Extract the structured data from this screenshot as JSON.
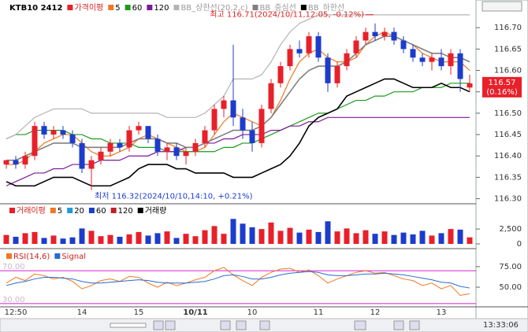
{
  "chart_data": [
    {
      "type": "candlestick",
      "title": "KTB10 2412",
      "legend_prefix": "가격이평",
      "categories": [
        null,
        "12:50",
        null,
        null,
        null,
        null,
        null,
        null,
        "14",
        null,
        null,
        null,
        null,
        null,
        "15",
        null,
        null,
        null,
        null,
        null,
        "10/11",
        null,
        null,
        null,
        null,
        null,
        "10",
        null,
        null,
        null,
        null,
        null,
        null,
        "11",
        null,
        null,
        null,
        null,
        null,
        "12",
        null,
        null,
        null,
        null,
        null,
        null,
        "13",
        null,
        null,
        null
      ],
      "open": [
        116.38,
        116.39,
        116.38,
        116.4,
        116.47,
        116.45,
        116.46,
        116.45,
        116.43,
        116.37,
        116.39,
        116.41,
        116.43,
        116.42,
        116.46,
        116.47,
        116.44,
        116.41,
        116.42,
        116.4,
        116.41,
        116.43,
        116.46,
        116.51,
        116.53,
        116.49,
        116.46,
        116.43,
        116.51,
        116.57,
        116.61,
        116.65,
        116.64,
        116.68,
        116.63,
        116.57,
        116.61,
        116.64,
        116.67,
        116.69,
        116.68,
        116.69,
        116.67,
        116.65,
        116.63,
        116.62,
        116.63,
        116.61,
        116.64,
        116.56
      ],
      "high": [
        116.39,
        116.4,
        116.41,
        116.48,
        116.48,
        116.47,
        116.47,
        116.46,
        116.44,
        116.4,
        116.42,
        116.44,
        116.44,
        116.47,
        116.48,
        116.47,
        116.45,
        116.43,
        116.43,
        116.42,
        116.44,
        116.47,
        116.52,
        116.54,
        116.66,
        116.51,
        116.48,
        116.52,
        116.58,
        116.62,
        116.66,
        116.67,
        116.69,
        116.69,
        116.64,
        116.62,
        116.65,
        116.68,
        116.7,
        116.71,
        116.7,
        116.7,
        116.68,
        116.66,
        116.64,
        116.64,
        116.65,
        116.65,
        116.65,
        116.59
      ],
      "low": [
        116.37,
        116.37,
        116.37,
        116.39,
        116.44,
        116.44,
        116.44,
        116.42,
        116.36,
        116.32,
        116.38,
        116.4,
        116.41,
        116.41,
        116.45,
        116.43,
        116.4,
        116.39,
        116.39,
        116.38,
        116.4,
        116.42,
        116.45,
        116.49,
        116.47,
        116.44,
        116.41,
        116.42,
        116.5,
        116.56,
        116.6,
        116.63,
        116.63,
        116.62,
        116.55,
        116.56,
        116.6,
        116.63,
        116.66,
        116.67,
        116.67,
        116.66,
        116.64,
        116.62,
        116.61,
        116.6,
        116.6,
        116.59,
        116.55,
        116.55
      ],
      "close": [
        116.39,
        116.38,
        116.4,
        116.47,
        116.45,
        116.46,
        116.45,
        116.43,
        116.37,
        116.39,
        116.41,
        116.43,
        116.42,
        116.46,
        116.47,
        116.44,
        116.41,
        116.42,
        116.4,
        116.41,
        116.43,
        116.46,
        116.51,
        116.53,
        116.49,
        116.46,
        116.43,
        116.51,
        116.57,
        116.61,
        116.65,
        116.64,
        116.68,
        116.63,
        116.57,
        116.61,
        116.64,
        116.67,
        116.69,
        116.68,
        116.69,
        116.67,
        116.65,
        116.63,
        116.62,
        116.63,
        116.61,
        116.64,
        116.58,
        116.57
      ],
      "up_color": "#e8202a",
      "down_color": "#1c3ccc",
      "series": [
        {
          "name": "5",
          "color": "#f07820",
          "values": [
            116.38,
            116.38,
            116.39,
            116.41,
            116.43,
            116.44,
            116.45,
            116.45,
            116.43,
            116.41,
            116.4,
            116.4,
            116.41,
            116.42,
            116.44,
            116.45,
            116.44,
            116.43,
            116.42,
            116.41,
            116.41,
            116.42,
            116.45,
            116.48,
            116.5,
            116.49,
            116.48,
            116.47,
            116.49,
            116.53,
            116.58,
            116.62,
            116.64,
            116.65,
            116.63,
            116.62,
            116.62,
            116.63,
            116.66,
            116.68,
            116.69,
            116.68,
            116.67,
            116.66,
            116.64,
            116.63,
            116.62,
            116.62,
            116.62,
            116.6
          ]
        },
        {
          "name": "60",
          "color": "#1f9a1f",
          "values": [
            116.44,
            116.45,
            116.45,
            116.46,
            116.46,
            116.46,
            116.46,
            116.45,
            116.45,
            116.44,
            116.44,
            116.43,
            116.43,
            116.43,
            116.42,
            116.42,
            116.42,
            116.41,
            116.41,
            116.41,
            116.41,
            116.41,
            116.41,
            116.42,
            116.42,
            116.43,
            116.43,
            116.44,
            116.45,
            116.46,
            116.47,
            116.48,
            116.49,
            116.5,
            116.5,
            116.51,
            116.52,
            116.53,
            116.53,
            116.54,
            116.54,
            116.55,
            116.55,
            116.55,
            116.56,
            116.56,
            116.56,
            116.57,
            116.57,
            116.57
          ]
        },
        {
          "name": "120",
          "color": "#7a1a96",
          "values": [
            116.33,
            116.34,
            116.35,
            116.36,
            116.36,
            116.37,
            116.37,
            116.38,
            116.38,
            116.38,
            116.39,
            116.39,
            116.39,
            116.4,
            116.4,
            116.4,
            116.41,
            116.41,
            116.41,
            116.42,
            116.42,
            116.43,
            116.43,
            116.44,
            116.44,
            116.45,
            116.45,
            116.45,
            116.46,
            116.46,
            116.47,
            116.47,
            116.48,
            116.48,
            116.49,
            116.49,
            116.49,
            116.49,
            116.49,
            116.49,
            116.49,
            116.49,
            116.49,
            116.49,
            116.49,
            116.49,
            116.49,
            116.49,
            116.49,
            116.49
          ]
        },
        {
          "name": "BB_상한선(20,2,c)",
          "color": "#b4b4b4",
          "values": [
            116.44,
            116.45,
            116.47,
            116.49,
            116.5,
            116.51,
            116.51,
            116.51,
            116.51,
            116.5,
            116.5,
            116.5,
            116.5,
            116.5,
            116.5,
            116.5,
            116.5,
            116.49,
            116.49,
            116.49,
            116.49,
            116.5,
            116.52,
            116.54,
            116.58,
            116.58,
            116.58,
            116.59,
            116.62,
            116.66,
            116.69,
            116.71,
            116.72,
            116.73,
            116.73,
            116.73,
            116.73,
            116.73,
            116.73,
            116.73,
            116.73,
            116.73,
            116.73,
            116.73,
            116.73,
            116.73,
            116.73,
            116.73,
            116.73,
            116.73
          ]
        },
        {
          "name": "BB_중심선",
          "color": "#808080",
          "values": [
            116.39,
            116.39,
            116.4,
            116.41,
            116.42,
            116.43,
            116.43,
            116.43,
            116.42,
            116.42,
            116.42,
            116.42,
            116.42,
            116.43,
            116.44,
            116.44,
            116.44,
            116.43,
            116.43,
            116.42,
            116.42,
            116.43,
            116.44,
            116.45,
            116.46,
            116.46,
            116.46,
            116.47,
            116.49,
            116.52,
            116.55,
            116.58,
            116.6,
            116.61,
            116.61,
            116.61,
            116.62,
            116.64,
            116.66,
            116.67,
            116.68,
            116.68,
            116.67,
            116.66,
            116.65,
            116.64,
            116.64,
            116.63,
            116.63,
            116.62
          ]
        },
        {
          "name": "BB_하한선",
          "color": "#000000",
          "values": [
            116.34,
            116.33,
            116.33,
            116.33,
            116.34,
            116.35,
            116.35,
            116.35,
            116.34,
            116.33,
            116.33,
            116.33,
            116.34,
            116.35,
            116.37,
            116.38,
            116.38,
            116.38,
            116.37,
            116.37,
            116.36,
            116.36,
            116.36,
            116.36,
            116.35,
            116.35,
            116.35,
            116.36,
            116.37,
            116.38,
            116.4,
            116.43,
            116.47,
            116.49,
            116.5,
            116.51,
            116.54,
            116.55,
            116.56,
            116.57,
            116.58,
            116.58,
            116.57,
            116.56,
            116.56,
            116.56,
            116.57,
            116.56,
            116.56,
            116.55
          ]
        }
      ],
      "ylim": [
        116.29,
        116.75
      ],
      "yticks": [
        {
          "value": 116.7,
          "label": "116.70"
        },
        {
          "value": 116.65,
          "label": "116.65"
        },
        {
          "value": 116.6,
          "label": "116.60"
        },
        {
          "value": 116.55,
          "label": "116.55"
        },
        {
          "value": 116.5,
          "label": "116.50"
        },
        {
          "value": 116.45,
          "label": "116.45"
        },
        {
          "value": 116.4,
          "label": "116.40"
        },
        {
          "value": 116.35,
          "label": "116.35"
        },
        {
          "value": 116.3,
          "label": "116.30"
        }
      ],
      "high_annotation": "최고 116.71(2024/10/11,12:05, -0.12%)",
      "low_annotation": "최저 116.32(2024/10/10,14:10, +0.21%)",
      "last_price": 116.57,
      "last_change": "(0.16%)",
      "time": "13:33:06"
    },
    {
      "type": "volume",
      "legend_prefix": "거래이평",
      "legend": [
        {
          "text": "5",
          "color": "#f07820"
        },
        {
          "text": "20",
          "color": "#1f9adf"
        },
        {
          "text": "60",
          "color": "#1c3ccc"
        },
        {
          "text": "120",
          "color": "#c0202a"
        }
      ],
      "series": [
        {
          "name": "거래량",
          "color": "#000000",
          "values": [
            1500,
            1200,
            1800,
            2000,
            1000,
            1400,
            900,
            1100,
            2600,
            2200,
            1300,
            1500,
            1200,
            1600,
            2000,
            1400,
            1800,
            2100,
            1000,
            1700,
            1300,
            2300,
            3000,
            1700,
            4200,
            3400,
            2800,
            2500,
            3600,
            2200,
            2700,
            1900,
            2400,
            2000,
            3800,
            2100,
            2600,
            1800,
            2300,
            1700,
            2100,
            1500,
            1900,
            1600,
            2200,
            1400,
            1800,
            2500,
            2400,
            1100
          ]
        }
      ],
      "ylim": [
        0,
        4500
      ],
      "yticks": [
        {
          "value": 2500,
          "label": "2,500"
        },
        0
      ]
    },
    {
      "type": "line",
      "series": [
        {
          "name": "RSI(14,6)",
          "color": "#f07820",
          "values": [
            55,
            62,
            58,
            66,
            64,
            60,
            62,
            57,
            48,
            52,
            58,
            60,
            57,
            63,
            62,
            55,
            50,
            56,
            52,
            55,
            59,
            62,
            70,
            74,
            65,
            58,
            52,
            62,
            68,
            72,
            73,
            68,
            71,
            64,
            55,
            60,
            64,
            68,
            70,
            67,
            68,
            64,
            60,
            58,
            52,
            55,
            48,
            52,
            40,
            42
          ]
        },
        {
          "name": "Signal",
          "color": "#2a6ad0",
          "values": [
            52,
            55,
            57,
            60,
            62,
            62,
            61,
            60,
            57,
            55,
            55,
            56,
            57,
            58,
            59,
            58,
            56,
            55,
            55,
            55,
            56,
            57,
            60,
            64,
            65,
            63,
            60,
            60,
            62,
            65,
            67,
            68,
            69,
            68,
            65,
            64,
            64,
            65,
            66,
            66,
            67,
            66,
            65,
            63,
            61,
            59,
            56,
            55,
            51,
            49
          ]
        }
      ],
      "ylim": [
        28,
        95
      ],
      "yticks": [
        {
          "value": 75,
          "label": "75.00"
        },
        {
          "value": 50,
          "label": "50.00"
        }
      ],
      "levels": [
        {
          "value": 70,
          "label": "70.00"
        },
        {
          "value": 30,
          "label": "30.00"
        }
      ],
      "level_color": "#d020d0"
    }
  ]
}
